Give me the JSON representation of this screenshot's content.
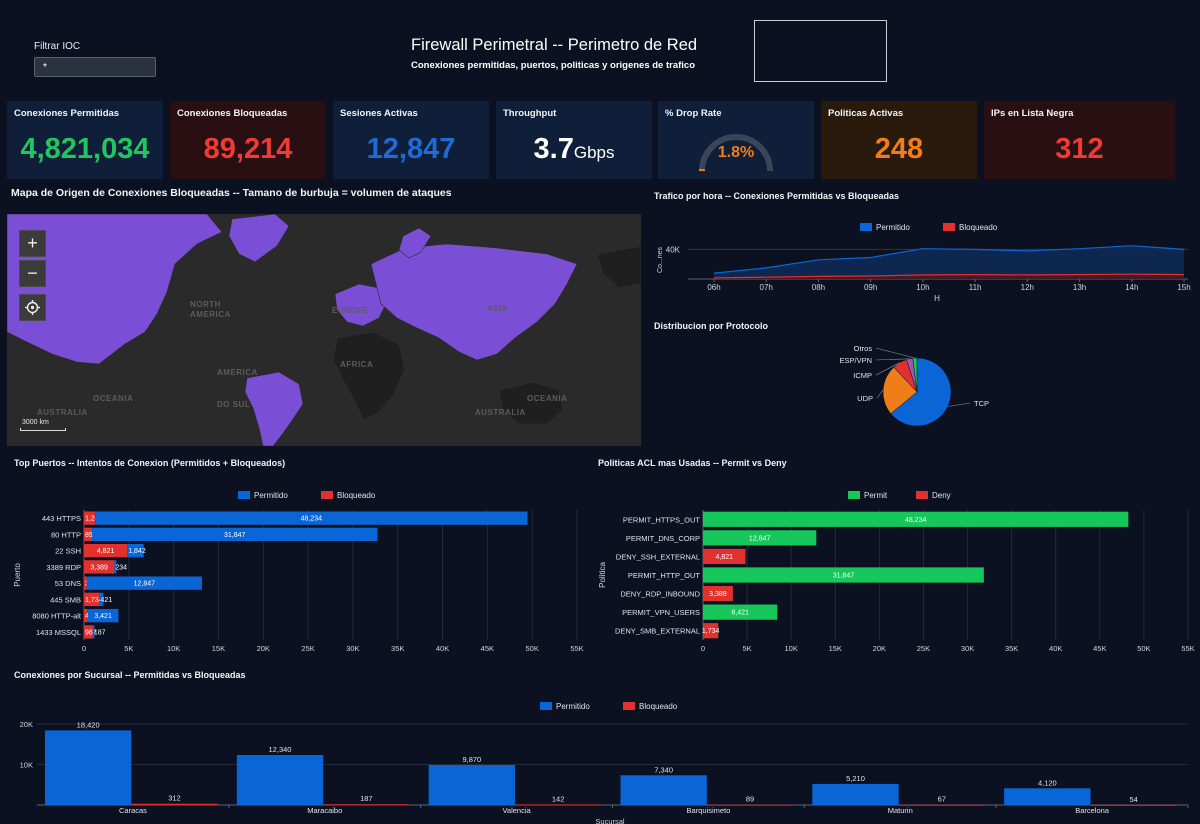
{
  "filter": {
    "label": "Filtrar IOC",
    "value": "*"
  },
  "header": {
    "title": "Firewall Perimetral -- Perimetro de Red",
    "subtitle": "Conexiones permitidas, puertos, politicas y origenes de trafico"
  },
  "kpis": [
    {
      "title": "Conexiones Permitidas",
      "value": "4,821,034",
      "color": "#22c55e",
      "bg": "#0f1f3a"
    },
    {
      "title": "Conexiones Bloqueadas",
      "value": "89,214",
      "color": "#ef3b36",
      "bg": "#2a0f12"
    },
    {
      "title": "Sesiones Activas",
      "value": "12,847",
      "color": "#1e6bd6",
      "bg": "#0f1f3a"
    },
    {
      "title": "Throughput",
      "value": "3.7",
      "unit": "Gbps",
      "color": "#ffffff",
      "bg": "#0f1f3a"
    },
    {
      "title": "% Drop Rate",
      "value": "1.8%",
      "color": "#f07c1a",
      "bg": "#0f1f3a",
      "gauge_fraction": 0.018
    },
    {
      "title": "Politicas Activas",
      "value": "248",
      "color": "#f07c1a",
      "bg": "#2a1a0c"
    },
    {
      "title": "IPs en Lista Negra",
      "value": "312",
      "color": "#ef3b36",
      "bg": "#2a0f12"
    }
  ],
  "map": {
    "title": "Mapa de Origen de Conexiones Bloqueadas -- Tamano de burbuja = volumen de ataques",
    "zoom_in": "+",
    "zoom_out": "−",
    "labels": [
      "NORTH",
      "AMERICA",
      "EUROPE",
      "ASIA",
      "AFRICA",
      "AMERICA",
      "DO SUL",
      "OCEANIA",
      "AUSTRALIA",
      "AUSTRALIA",
      "OCEANIA"
    ],
    "scale": "3000 km"
  },
  "colors": {
    "permit_blue": "#0a66d6",
    "deny_red": "#e0312f",
    "permit_green": "#16c75c"
  },
  "traffic": {
    "title": "Trafico por hora -- Conexiones Permitidas vs Bloqueadas",
    "legend": [
      "Permitido",
      "Bloqueado"
    ],
    "ylabel": "Co...nes",
    "xlabel": "H",
    "ytick": "40K",
    "x": [
      "06h",
      "07h",
      "08h",
      "09h",
      "10h",
      "11h",
      "12h",
      "13h",
      "14h",
      "15h"
    ],
    "chart_data": {
      "type": "area",
      "x": [
        "06h",
        "07h",
        "08h",
        "09h",
        "10h",
        "11h",
        "12h",
        "13h",
        "14h",
        "15h"
      ],
      "ylim": [
        0,
        50000
      ],
      "series": [
        {
          "name": "Permitido",
          "values": [
            8000,
            15000,
            26000,
            29000,
            41000,
            40000,
            38000,
            41000,
            45000,
            40000
          ]
        },
        {
          "name": "Bloqueado",
          "values": [
            1500,
            2500,
            3500,
            4000,
            5500,
            6000,
            5500,
            6000,
            6500,
            6000
          ]
        }
      ]
    }
  },
  "protocol": {
    "title": "Distribucion por Protocolo",
    "chart_data": {
      "type": "pie",
      "labels": [
        "TCP",
        "UDP",
        "ICMP",
        "ESP/VPN",
        "Otros"
      ],
      "values": [
        64,
        24,
        7,
        3,
        2
      ],
      "colors": [
        "#0a66d6",
        "#f07c1a",
        "#e0312f",
        "#9b59b6",
        "#16c75c"
      ]
    }
  },
  "ports": {
    "title": "Top Puertos -- Intentos de Conexion (Permitidos + Bloqueados)",
    "legend": [
      "Permitido",
      "Bloqueado"
    ],
    "ylabel": "Puerto",
    "xticks": [
      "0",
      "5K",
      "10K",
      "15K",
      "20K",
      "25K",
      "30K",
      "35K",
      "40K",
      "45K",
      "50K",
      "55K"
    ],
    "chart_data": {
      "type": "bar",
      "orientation": "horizontal",
      "stacked": true,
      "categories": [
        "443 HTTPS",
        "80 HTTP",
        "22 SSH",
        "3389 RDP",
        "53 DNS",
        "445 SMB",
        "8080 HTTP-alt",
        "1433 MSSQL"
      ],
      "xlim": [
        0,
        55000
      ],
      "series": [
        {
          "name": "Bloqueado",
          "values": [
            1247,
            892,
            4821,
            3389,
            312,
            1734,
            421,
            987
          ],
          "labels": [
            "1,247",
            "892",
            "4,821",
            "3,389",
            "312",
            "1,734",
            "421",
            "987"
          ]
        },
        {
          "name": "Permitido",
          "values": [
            48234,
            31847,
            1842,
            234,
            12847,
            421,
            3421,
            187
          ],
          "labels": [
            "48,234",
            "31,847",
            "1,842",
            "234",
            "12,847",
            "421",
            "3,421",
            "187"
          ]
        }
      ]
    }
  },
  "acl": {
    "title": "Politicas ACL mas Usadas -- Permit vs Deny",
    "legend": [
      "Permit",
      "Deny"
    ],
    "ylabel": "Politica",
    "xticks": [
      "0",
      "5K",
      "10K",
      "15K",
      "20K",
      "25K",
      "30K",
      "35K",
      "40K",
      "45K",
      "50K",
      "55K"
    ],
    "chart_data": {
      "type": "bar",
      "orientation": "horizontal",
      "categories": [
        "PERMIT_HTTPS_OUT",
        "PERMIT_DNS_CORP",
        "DENY_SSH_EXTERNAL",
        "PERMIT_HTTP_OUT",
        "DENY_RDP_INBOUND",
        "PERMIT_VPN_USERS",
        "DENY_SMB_EXTERNAL"
      ],
      "xlim": [
        0,
        55000
      ],
      "values": [
        48234,
        12847,
        4821,
        31847,
        3389,
        8421,
        1734
      ],
      "labels": [
        "48,234",
        "12,847",
        "4,821",
        "31,847",
        "3,389",
        "8,421",
        "1,734"
      ],
      "kinds": [
        "Permit",
        "Permit",
        "Deny",
        "Permit",
        "Deny",
        "Permit",
        "Deny"
      ]
    }
  },
  "branches": {
    "title": "Conexiones por Sucursal -- Permitidas vs Bloqueadas",
    "legend": [
      "Permitido",
      "Bloqueado"
    ],
    "xlabel": "Sucursal",
    "yticks": [
      "20K",
      "10K"
    ],
    "chart_data": {
      "type": "bar",
      "categories": [
        "Caracas",
        "Maracaibo",
        "Valencia",
        "Barquisimeto",
        "Maturin",
        "Barcelona"
      ],
      "ylim": [
        0,
        20000
      ],
      "series": [
        {
          "name": "Permitido",
          "values": [
            18420,
            12340,
            9870,
            7340,
            5210,
            4120
          ],
          "labels": [
            "18,420",
            "12,340",
            "9,870",
            "7,340",
            "5,210",
            "4,120"
          ]
        },
        {
          "name": "Bloqueado",
          "values": [
            312,
            187,
            142,
            89,
            67,
            54
          ],
          "labels": [
            "312",
            "187",
            "142",
            "89",
            "67",
            "54"
          ]
        }
      ]
    }
  }
}
